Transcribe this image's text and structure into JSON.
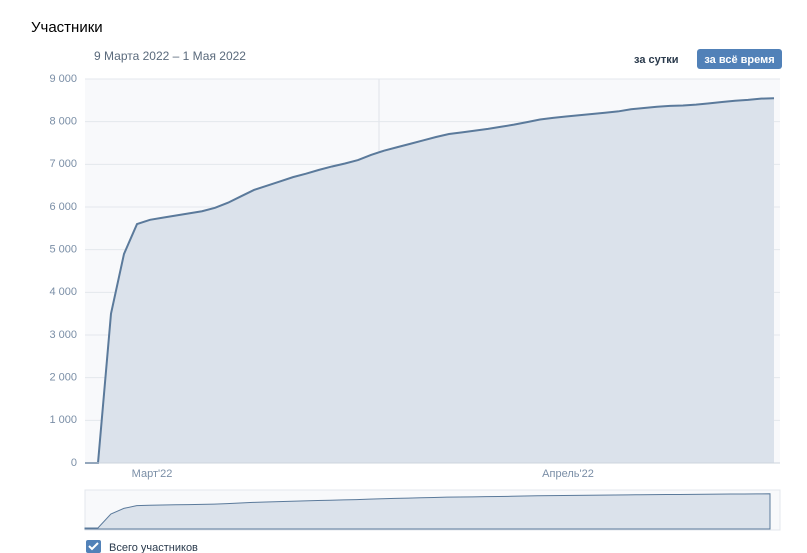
{
  "header": {
    "title": "Участники",
    "period": "9 Марта 2022 – 1 Мая 2022",
    "buttons": [
      "за сутки",
      "за всё время"
    ]
  },
  "chart_data": {
    "type": "area",
    "categories": [
      null,
      null,
      null,
      null,
      null,
      "Март'22",
      null,
      null,
      null,
      null,
      null,
      null,
      null,
      null,
      null,
      null,
      null,
      null,
      null,
      null,
      null,
      null,
      null,
      null,
      null,
      null,
      null,
      null,
      null,
      null,
      null,
      null,
      null,
      null,
      null,
      null,
      null,
      "Апрель'22",
      null,
      null,
      null,
      null,
      null,
      null,
      null,
      null,
      null,
      null,
      null,
      null,
      null,
      null,
      null,
      null
    ],
    "series": [
      {
        "name": "Всего участников",
        "color": "#5b7a9b",
        "values": [
          0,
          0,
          3500,
          4900,
          5600,
          5700,
          5750,
          5800,
          5850,
          5900,
          5980,
          6100,
          6250,
          6400,
          6500,
          6600,
          6700,
          6780,
          6870,
          6950,
          7020,
          7100,
          7220,
          7320,
          7400,
          7480,
          7560,
          7640,
          7710,
          7750,
          7790,
          7830,
          7880,
          7930,
          7990,
          8050,
          8090,
          8120,
          8150,
          8180,
          8210,
          8240,
          8290,
          8320,
          8350,
          8370,
          8380,
          8400,
          8430,
          8460,
          8490,
          8510,
          8540,
          8550
        ]
      }
    ],
    "ylim": [
      0,
      9000
    ],
    "yticks": [
      0,
      {
        "value": 1000,
        "label": "1 000"
      },
      {
        "value": 2000,
        "label": "2 000"
      },
      {
        "value": 3000,
        "label": "3 000"
      },
      {
        "value": 4000,
        "label": "4 000"
      },
      {
        "value": 5000,
        "label": "5 000"
      },
      {
        "value": 6000,
        "label": "6 000"
      },
      {
        "value": 7000,
        "label": "7 000"
      },
      {
        "value": 8000,
        "label": "8 000"
      },
      {
        "value": 9000,
        "label": "9 000"
      }
    ],
    "grid": true
  }
}
